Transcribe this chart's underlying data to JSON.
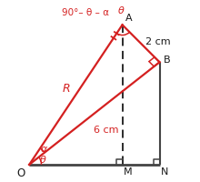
{
  "background_color": "#ffffff",
  "O": [
    0.0,
    0.0
  ],
  "N": [
    7.0,
    0.0
  ],
  "M": [
    5.0,
    0.0
  ],
  "A": [
    5.0,
    7.5
  ],
  "B": [
    7.0,
    5.5
  ],
  "red": "#d42020",
  "black": "#1a1a1a",
  "darkgray": "#444444",
  "label_O": "O",
  "label_N": "N",
  "label_M": "M",
  "label_A": "A",
  "label_B": "B",
  "label_R": "R",
  "label_6cm": "6 cm",
  "label_2cm": "2 cm",
  "label_angle_top": "90°– θ – α",
  "label_alpha": "α",
  "label_theta_O": "θ",
  "label_theta_A": "θ",
  "xlim": [
    -0.6,
    8.2
  ],
  "ylim": [
    -0.7,
    8.8
  ],
  "figsize": [
    2.2,
    2.0
  ],
  "dpi": 100
}
